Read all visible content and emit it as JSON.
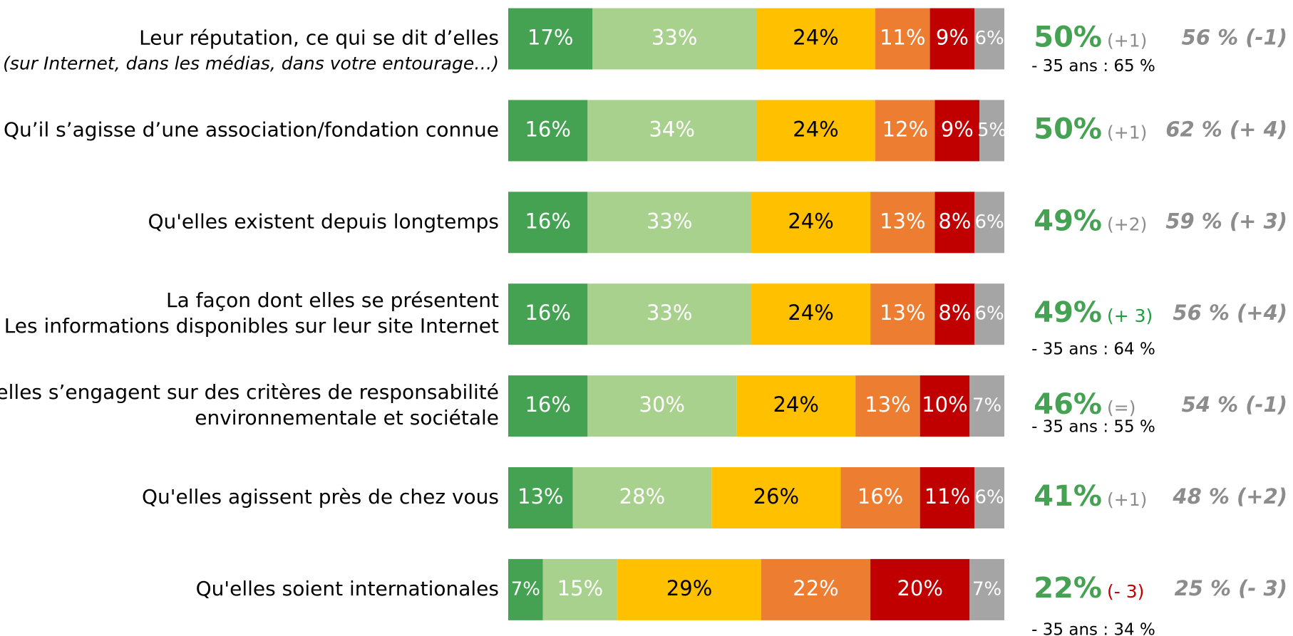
{
  "chart_data": {
    "type": "bar",
    "orientation": "horizontal",
    "stacked": true,
    "categories": [
      [
        "Leur réputation, ce qui se dit d’elles"
      ],
      [
        "Qu’il s’agisse d’une association/fondation connue"
      ],
      [
        "Qu'elles existent depuis longtemps"
      ],
      [
        "La façon dont elles se présentent",
        "Les informations disponibles sur leur site Internet"
      ],
      [
        "Qu’elles s’engagent sur des critères de responsabilité",
        "environnementale et sociétale"
      ],
      [
        "Qu'elles agissent près de chez vous"
      ],
      [
        "Qu'elles soient internationales"
      ]
    ],
    "category_notes": [
      "(sur Internet, dans les médias, dans votre entourage…)",
      null,
      null,
      null,
      null,
      null,
      null
    ],
    "xlim": [
      0,
      100
    ],
    "series": [
      {
        "color": "#46a253",
        "label_color": "#ffffff",
        "values": [
          17,
          16,
          16,
          16,
          16,
          13,
          7
        ],
        "value_labels": [
          "17%",
          "16%",
          "16%",
          "16%",
          "16%",
          "13%",
          "7%"
        ]
      },
      {
        "color": "#a9d18e",
        "label_color": "#ffffff",
        "values": [
          33,
          34,
          33,
          33,
          30,
          28,
          15
        ],
        "value_labels": [
          "33%",
          "34%",
          "33%",
          "33%",
          "30%",
          "28%",
          "15%"
        ]
      },
      {
        "color": "#ffc000",
        "label_color": "#000000",
        "values": [
          24,
          24,
          24,
          24,
          24,
          26,
          29
        ],
        "value_labels": [
          "24%",
          "24%",
          "24%",
          "24%",
          "24%",
          "26%",
          "29%"
        ]
      },
      {
        "color": "#ed7d31",
        "label_color": "#ffffff",
        "values": [
          11,
          12,
          13,
          13,
          13,
          16,
          22
        ],
        "value_labels": [
          "11%",
          "12%",
          "13%",
          "13%",
          "13%",
          "16%",
          "22%"
        ]
      },
      {
        "color": "#c00000",
        "label_color": "#ffffff",
        "values": [
          9,
          9,
          8,
          8,
          10,
          11,
          20
        ],
        "value_labels": [
          "9%",
          "9%",
          "8%",
          "8%",
          "10%",
          "11%",
          "20%"
        ]
      },
      {
        "color": "#a5a5a5",
        "label_color": "#ffffff",
        "values": [
          6,
          5,
          6,
          6,
          7,
          6,
          7
        ],
        "value_labels": [
          "6%",
          "5%",
          "6%",
          "6%",
          "7%",
          "6%",
          "7%"
        ]
      }
    ],
    "totals": {
      "color": "#46a253",
      "values": [
        50,
        50,
        49,
        49,
        46,
        41,
        22
      ],
      "value_labels": [
        "50%",
        "50%",
        "49%",
        "49%",
        "46%",
        "41%",
        "22%"
      ]
    },
    "changes": [
      "(+1)",
      "(+1)",
      "(+2)",
      "(+ 3)",
      "(=)",
      "(+1)",
      "(- 3)"
    ],
    "change_colors": [
      "#8c8c8c",
      "#8c8c8c",
      "#8c8c8c",
      "#1e9e3e",
      "#8c8c8c",
      "#8c8c8c",
      "#c00000"
    ],
    "sub_notes": [
      "- 35 ans : 65 %",
      null,
      null,
      "- 35 ans : 64 %",
      "- 35 ans : 55 %",
      null,
      "- 35 ans : 34 %"
    ],
    "previous": [
      "56 % (-1)",
      "62 % (+ 4)",
      "59 % (+ 3)",
      "56 % (+4)",
      "54 % (-1)",
      "48 % (+2)",
      "25 % (- 3)"
    ],
    "previous_color": "#8c8c8c"
  }
}
